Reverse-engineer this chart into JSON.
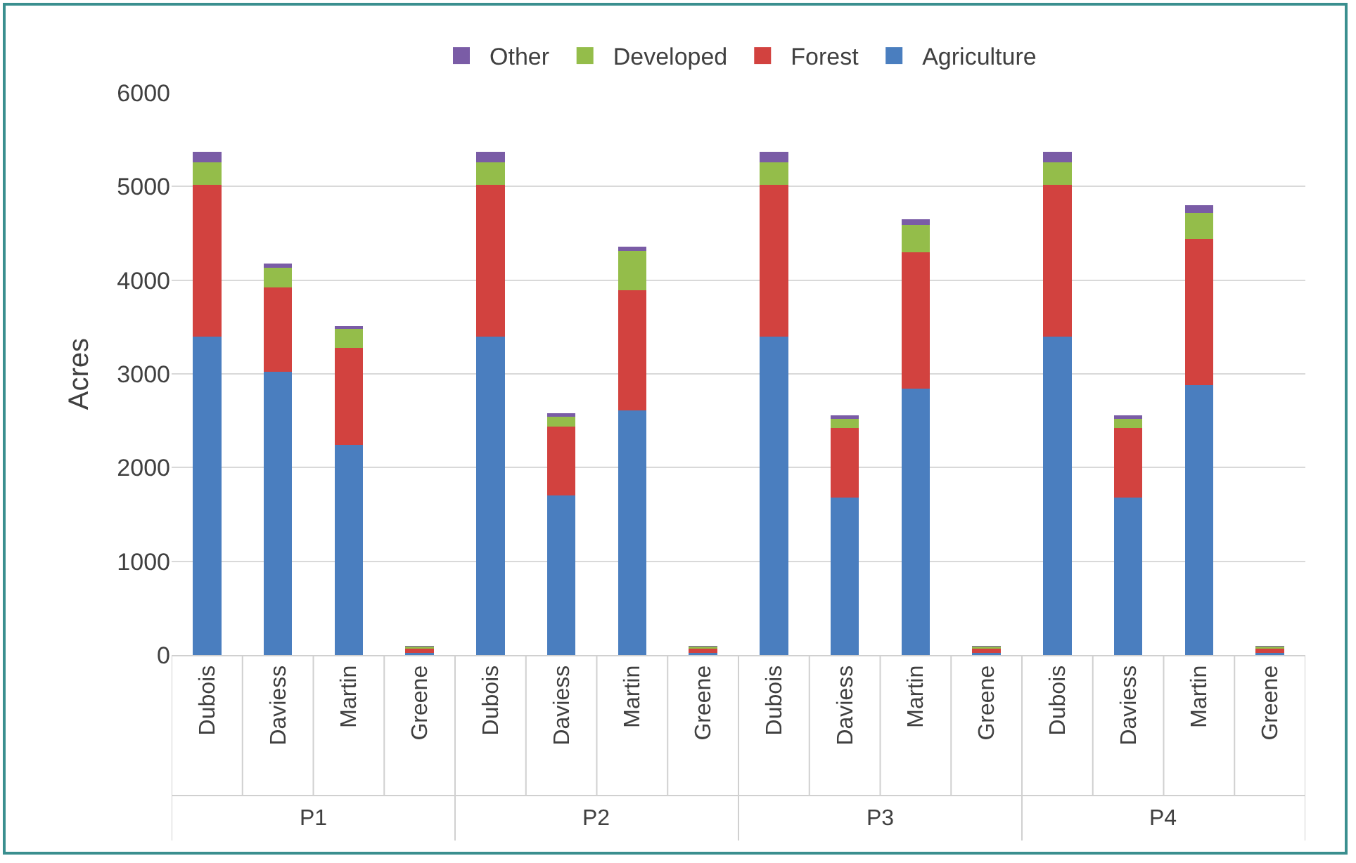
{
  "chart_data": {
    "type": "bar",
    "stacked": true,
    "ylabel": "Acres",
    "categories": [
      "Dubois",
      "Daviess",
      "Martin",
      "Greene",
      "Dubois",
      "Daviess",
      "Martin",
      "Greene",
      "Dubois",
      "Daviess",
      "Martin",
      "Greene",
      "Dubois",
      "Daviess",
      "Martin",
      "Greene"
    ],
    "series": [
      {
        "name": "Agriculture",
        "color": "#4a7ebf",
        "values": [
          3400,
          3020,
          2240,
          20,
          3400,
          1700,
          2610,
          20,
          3400,
          1680,
          2840,
          20,
          3400,
          1680,
          2880,
          20
        ]
      },
      {
        "name": "Forest",
        "color": "#d2423f",
        "values": [
          1620,
          900,
          1040,
          50,
          1620,
          740,
          1280,
          50,
          1620,
          740,
          1460,
          50,
          1620,
          740,
          1560,
          50
        ]
      },
      {
        "name": "Developed",
        "color": "#94bd4a",
        "values": [
          240,
          210,
          200,
          20,
          240,
          100,
          420,
          20,
          240,
          100,
          290,
          20,
          240,
          100,
          280,
          20
        ]
      },
      {
        "name": "Other",
        "color": "#7a5ca6",
        "values": [
          110,
          50,
          30,
          10,
          110,
          40,
          50,
          10,
          110,
          40,
          60,
          10,
          110,
          40,
          80,
          10
        ]
      }
    ],
    "annotations": [
      "P1",
      "P2",
      "P3",
      "P4"
    ],
    "ylim": [
      0,
      6000
    ],
    "yticks": [
      0,
      1000,
      2000,
      3000,
      4000,
      5000,
      6000
    ],
    "grid": "y",
    "legend": "top"
  }
}
